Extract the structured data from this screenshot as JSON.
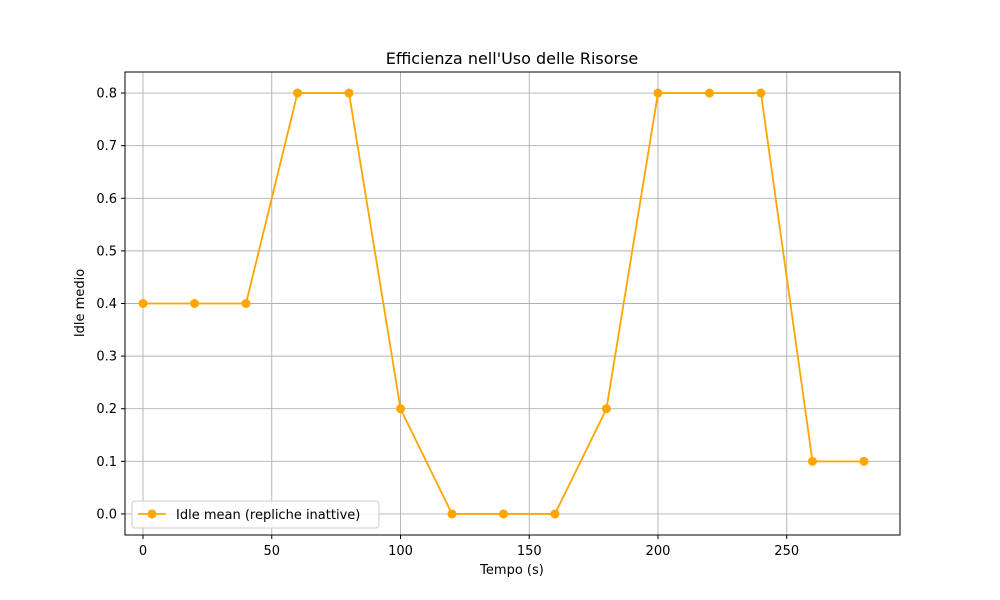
{
  "chart_data": {
    "type": "line",
    "title": "Efficienza nell'Uso delle Risorse",
    "xlabel": "Tempo (s)",
    "ylabel": "Idle medio",
    "xlim": [
      -7,
      294
    ],
    "ylim": [
      -0.04,
      0.84
    ],
    "xticks": [
      0,
      50,
      100,
      150,
      200,
      250
    ],
    "yticks": [
      0.0,
      0.1,
      0.2,
      0.3,
      0.4,
      0.5,
      0.6,
      0.7,
      0.8
    ],
    "grid": true,
    "legend_position": "lower-left",
    "series": [
      {
        "name": "Idle mean (repliche inattive)",
        "color": "#ffa500",
        "marker": "circle",
        "x": [
          0,
          20,
          40,
          60,
          80,
          100,
          120,
          140,
          160,
          180,
          200,
          220,
          240,
          260,
          280
        ],
        "y": [
          0.4,
          0.4,
          0.4,
          0.8,
          0.8,
          0.2,
          0.0,
          0.0,
          0.0,
          0.2,
          0.8,
          0.8,
          0.8,
          0.1,
          0.1
        ]
      }
    ]
  }
}
